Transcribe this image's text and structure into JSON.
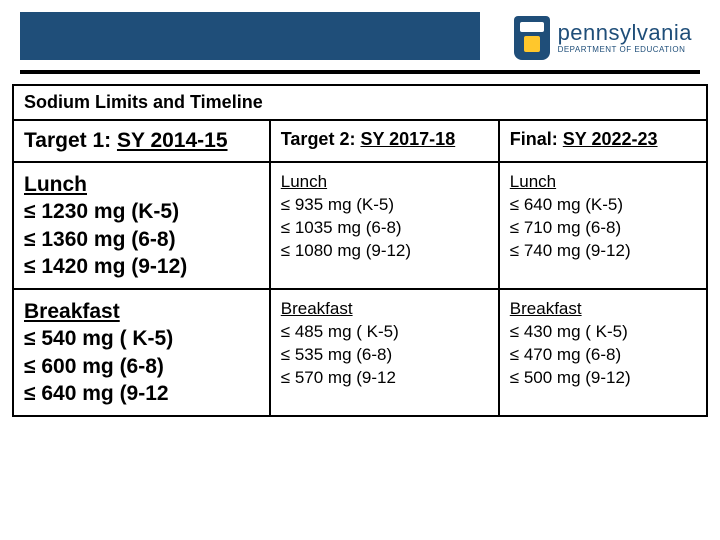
{
  "header": {
    "bar_color": "#1f4e79",
    "line_color": "#000000",
    "logo_main": "pennsylvania",
    "logo_sub": "DEPARTMENT OF EDUCATION"
  },
  "table": {
    "title": "Sodium Limits and Timeline",
    "head": {
      "c1_prefix": "Target 1: ",
      "c1_link": "SY 2014-15",
      "c2_prefix": "Target 2: ",
      "c2_link": "SY 2017-18",
      "c3_prefix": "Final: ",
      "c3_link": "SY 2022-23"
    },
    "rows": [
      {
        "c1": {
          "hdr": "Lunch",
          "l1": "≤ 1230 mg (K-5)",
          "l2": "≤ 1360 mg (6-8)",
          "l3": "≤ 1420 mg (9-12)"
        },
        "c2": {
          "hdr": "Lunch",
          "l1": "≤ 935 mg (K-5)",
          "l2": "≤ 1035 mg (6-8)",
          "l3": "≤ 1080 mg (9-12)"
        },
        "c3": {
          "hdr": "Lunch",
          "l1": "≤ 640 mg (K-5)",
          "l2": "≤ 710 mg (6-8)",
          "l3": "≤ 740 mg (9-12)"
        }
      },
      {
        "c1": {
          "hdr": "Breakfast",
          "l1": "≤ 540 mg ( K-5)",
          "l2": "≤ 600 mg (6-8)",
          "l3": "≤ 640 mg (9-12"
        },
        "c2": {
          "hdr": "Breakfast",
          "l1": "≤ 485 mg ( K-5)",
          "l2": "≤ 535 mg (6-8)",
          "l3": "≤ 570 mg (9-12"
        },
        "c3": {
          "hdr": "Breakfast",
          "l1": "≤ 430 mg ( K-5)",
          "l2": "≤ 470 mg (6-8)",
          "l3": "≤ 500 mg (9-12)"
        }
      }
    ]
  }
}
